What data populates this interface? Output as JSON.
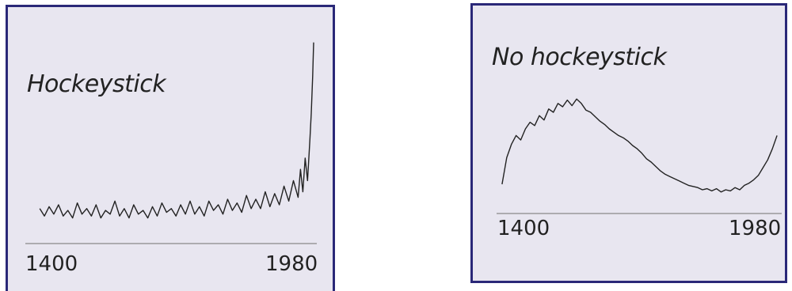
{
  "colors": {
    "panel_background": "#e8e6f0",
    "panel_border": "#2a2878",
    "line": "#222222",
    "axis": "#999999"
  },
  "chart_data": [
    {
      "type": "line",
      "title": "Hockeystick",
      "xlabel": "",
      "ylabel": "",
      "xlim": [
        1400,
        1990
      ],
      "ylim": [
        0,
        10
      ],
      "x_ticks": [
        "1400",
        "1980"
      ],
      "grid": false,
      "legend": "none",
      "series": [
        {
          "x": [
            1407,
            1417,
            1427,
            1437,
            1447,
            1457,
            1467,
            1477,
            1487,
            1497,
            1507,
            1517,
            1527,
            1537,
            1547,
            1557,
            1567,
            1577,
            1587,
            1597,
            1607,
            1617,
            1627,
            1637,
            1647,
            1657,
            1667,
            1677,
            1687,
            1697,
            1707,
            1717,
            1727,
            1737,
            1747,
            1757,
            1767,
            1777,
            1787,
            1797,
            1807,
            1817,
            1827,
            1837,
            1847,
            1857,
            1867,
            1877,
            1887,
            1897,
            1907,
            1917,
            1927,
            1937,
            1947,
            1957,
            1962,
            1967,
            1972,
            1977,
            1982,
            1985,
            1988,
            1990
          ],
          "y": [
            0.9,
            0.5,
            1.0,
            0.6,
            1.1,
            0.5,
            0.8,
            0.4,
            1.2,
            0.6,
            0.9,
            0.5,
            1.1,
            0.4,
            0.8,
            0.6,
            1.3,
            0.5,
            0.9,
            0.4,
            1.1,
            0.6,
            0.8,
            0.4,
            1.0,
            0.5,
            1.2,
            0.7,
            0.9,
            0.5,
            1.1,
            0.6,
            1.3,
            0.6,
            1.0,
            0.5,
            1.3,
            0.8,
            1.1,
            0.6,
            1.4,
            0.8,
            1.2,
            0.7,
            1.6,
            0.9,
            1.4,
            0.9,
            1.8,
            1.0,
            1.7,
            1.1,
            2.1,
            1.3,
            2.4,
            1.5,
            3.0,
            1.8,
            3.6,
            2.4,
            4.6,
            6.0,
            8.0,
            9.8
          ]
        }
      ]
    },
    {
      "type": "line",
      "title": "No hockeystick",
      "xlabel": "",
      "ylabel": "",
      "xlim": [
        1390,
        1990
      ],
      "ylim": [
        0,
        10
      ],
      "x_ticks": [
        "1400",
        "1980"
      ],
      "grid": false,
      "legend": "none",
      "series": [
        {
          "x": [
            1395,
            1405,
            1415,
            1425,
            1435,
            1445,
            1455,
            1465,
            1475,
            1485,
            1495,
            1505,
            1515,
            1525,
            1535,
            1545,
            1555,
            1565,
            1575,
            1585,
            1595,
            1605,
            1615,
            1625,
            1635,
            1645,
            1655,
            1665,
            1675,
            1685,
            1695,
            1705,
            1715,
            1725,
            1735,
            1745,
            1755,
            1765,
            1775,
            1785,
            1795,
            1805,
            1815,
            1825,
            1835,
            1845,
            1855,
            1865,
            1875,
            1885,
            1895,
            1905,
            1915,
            1925,
            1935,
            1945,
            1955,
            1965,
            1975,
            1985
          ],
          "y": [
            1.0,
            3.4,
            4.6,
            5.4,
            5.0,
            6.0,
            6.6,
            6.3,
            7.2,
            6.8,
            7.8,
            7.5,
            8.3,
            8.0,
            8.6,
            8.1,
            8.7,
            8.3,
            7.7,
            7.5,
            7.1,
            6.7,
            6.4,
            6.0,
            5.7,
            5.4,
            5.2,
            4.9,
            4.5,
            4.2,
            3.8,
            3.3,
            3.0,
            2.6,
            2.2,
            1.9,
            1.7,
            1.5,
            1.3,
            1.1,
            0.9,
            0.8,
            0.7,
            0.5,
            0.6,
            0.4,
            0.6,
            0.3,
            0.5,
            0.4,
            0.7,
            0.5,
            0.9,
            1.1,
            1.4,
            1.8,
            2.5,
            3.2,
            4.2,
            5.4
          ]
        }
      ]
    }
  ]
}
